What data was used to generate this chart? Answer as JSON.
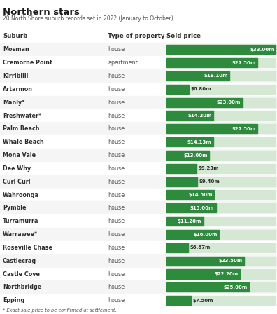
{
  "title": "Northern stars",
  "subtitle": "20 North Shore suburb records set in 2022 (January to October)",
  "footnote": "* Exact sale price to be confirmed at settlement.",
  "headers": [
    "Suburb",
    "Type of property",
    "Sold price"
  ],
  "rows": [
    {
      "suburb": "Mosman",
      "type": "house",
      "price": 33.0,
      "label": "$33.00m"
    },
    {
      "suburb": "Cremorne Point",
      "type": "apartment",
      "price": 27.5,
      "label": "$27.50m"
    },
    {
      "suburb": "Kirribilli",
      "type": "house",
      "price": 19.1,
      "label": "$19.10m"
    },
    {
      "suburb": "Artarmon",
      "type": "house",
      "price": 6.8,
      "label": "$6.80m"
    },
    {
      "suburb": "Manly*",
      "type": "house",
      "price": 23.0,
      "label": "$23.00m"
    },
    {
      "suburb": "Freshwater*",
      "type": "house",
      "price": 14.2,
      "label": "$14.20m"
    },
    {
      "suburb": "Palm Beach",
      "type": "house",
      "price": 27.5,
      "label": "$27.50m"
    },
    {
      "suburb": "Whale Beach",
      "type": "house",
      "price": 14.13,
      "label": "$14.13m"
    },
    {
      "suburb": "Mona Vale",
      "type": "house",
      "price": 13.0,
      "label": "$13.00m"
    },
    {
      "suburb": "Dee Why",
      "type": "house",
      "price": 9.23,
      "label": "$9.23m"
    },
    {
      "suburb": "Curl Curl",
      "type": "house",
      "price": 9.4,
      "label": "$9.40m"
    },
    {
      "suburb": "Wahroonga",
      "type": "house",
      "price": 14.5,
      "label": "$14.50m"
    },
    {
      "suburb": "Pymble",
      "type": "house",
      "price": 15.0,
      "label": "$15.00m"
    },
    {
      "suburb": "Turramurra",
      "type": "house",
      "price": 11.2,
      "label": "$11.20m"
    },
    {
      "suburb": "Warrawee*",
      "type": "house",
      "price": 16.0,
      "label": "$16.00m"
    },
    {
      "suburb": "Roseville Chase",
      "type": "house",
      "price": 6.67,
      "label": "$6.67m"
    },
    {
      "suburb": "Castlecrag",
      "type": "house",
      "price": 23.5,
      "label": "$23.50m"
    },
    {
      "suburb": "Castle Cove",
      "type": "house",
      "price": 22.2,
      "label": "$22.20m"
    },
    {
      "suburb": "Northbridge",
      "type": "house",
      "price": 25.0,
      "label": "$25.00m"
    },
    {
      "suburb": "Epping",
      "type": "house",
      "price": 7.5,
      "label": "$7.50m"
    }
  ],
  "max_price": 33.0,
  "bar_color": "#2e8b3e",
  "bar_bg_color": "#d4e8d4",
  "header_color": "#2e2e2e",
  "row_bg_odd": "#f5f5f5",
  "row_bg_even": "#ffffff",
  "title_color": "#1a1a1a",
  "subtitle_color": "#555555",
  "text_color": "#2e2e2e",
  "label_text_color": "#ffffff",
  "label_text_color_outside": "#2e2e2e"
}
